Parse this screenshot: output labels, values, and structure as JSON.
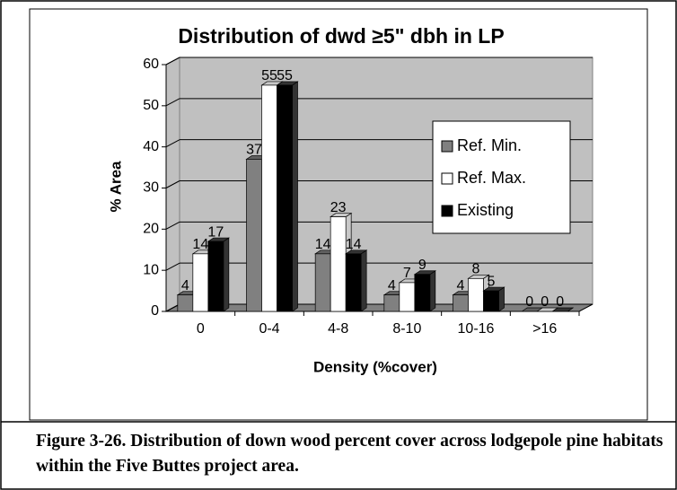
{
  "chart_data": {
    "type": "bar3d",
    "title": "Distribution of dwd ≥5\" dbh in LP",
    "y_label": "% Area",
    "x_label": "Density (%cover)",
    "categories": [
      "0",
      "0-4",
      "4-8",
      "8-10",
      "10-16",
      ">16"
    ],
    "series": [
      {
        "name": "Ref. Min.",
        "color": "#808080",
        "values": [
          4,
          37,
          14,
          4,
          4,
          0
        ]
      },
      {
        "name": "Ref. Max.",
        "color": "#ffffff",
        "values": [
          14,
          55,
          23,
          7,
          8,
          0
        ]
      },
      {
        "name": "Existing",
        "color": "#000000",
        "values": [
          17,
          55,
          14,
          9,
          5,
          0
        ]
      }
    ],
    "ylim": [
      0,
      60
    ],
    "yticks": [
      0,
      10,
      20,
      30,
      40,
      50,
      60
    ],
    "grid": true,
    "legend": "right"
  },
  "caption": "Figure 3-26.  Distribution of down wood percent cover across lodgepole pine habitats within the Five Buttes project area."
}
